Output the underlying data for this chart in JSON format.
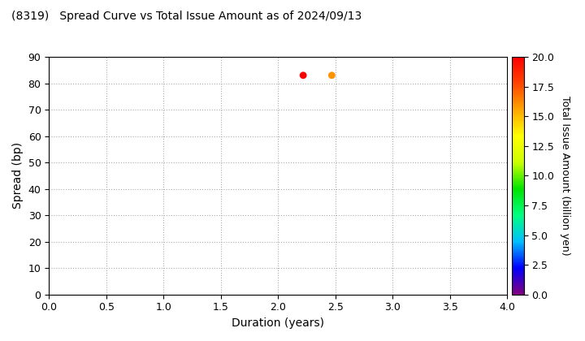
{
  "title": "(8319)   Spread Curve vs Total Issue Amount as of 2024/09/13",
  "xlabel": "Duration (years)",
  "ylabel": "Spread (bp)",
  "colorbar_label": "Total Issue Amount (billion yen)",
  "xlim": [
    0.0,
    4.0
  ],
  "ylim": [
    0,
    90
  ],
  "xticks": [
    0.0,
    0.5,
    1.0,
    1.5,
    2.0,
    2.5,
    3.0,
    3.5,
    4.0
  ],
  "yticks": [
    0,
    10,
    20,
    30,
    40,
    50,
    60,
    70,
    80,
    90
  ],
  "colorbar_ticks": [
    0.0,
    2.5,
    5.0,
    7.5,
    10.0,
    12.5,
    15.0,
    17.5,
    20.0
  ],
  "clim": [
    0.0,
    20.0
  ],
  "scatter_points": [
    {
      "duration": 2.22,
      "spread": 83,
      "amount": 20.0
    },
    {
      "duration": 2.47,
      "spread": 83,
      "amount": 16.0
    }
  ],
  "scatter_size": 40,
  "background_color": "#ffffff",
  "grid_color": "#aaaaaa",
  "grid_linestyle": "dotted",
  "colormap": "gist_rainbow_r"
}
